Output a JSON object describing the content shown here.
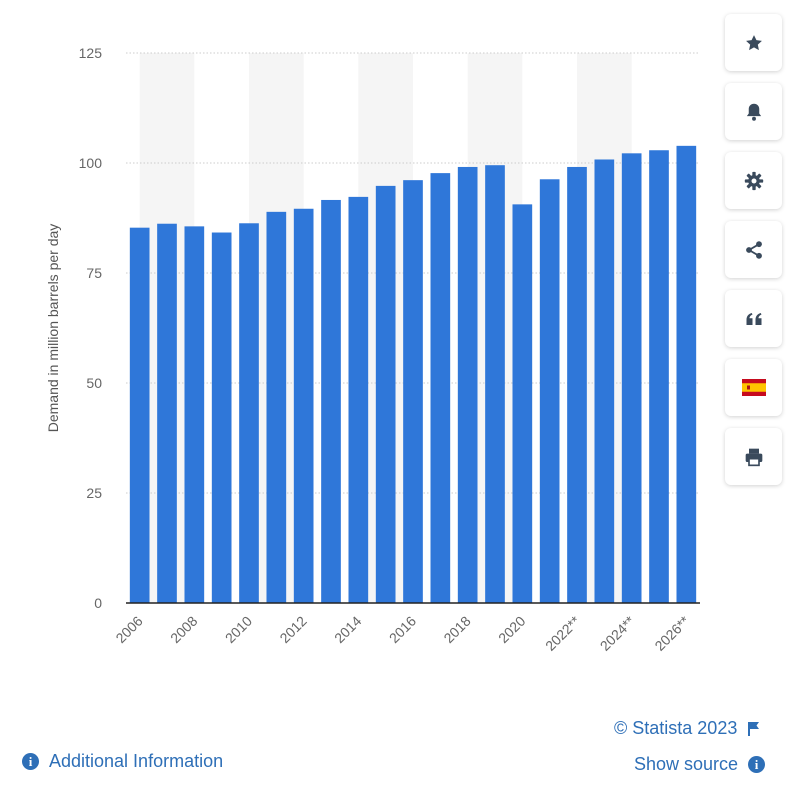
{
  "chart_data": {
    "type": "bar",
    "categories": [
      "2006",
      "2007",
      "2008",
      "2009",
      "2010",
      "2011",
      "2012",
      "2013",
      "2014",
      "2015",
      "2016",
      "2017",
      "2018",
      "2019",
      "2020",
      "2021",
      "2022**",
      "2023**",
      "2024**",
      "2025**",
      "2026**"
    ],
    "tick_labels": [
      "2006",
      "2008",
      "2010",
      "2012",
      "2014",
      "2016",
      "2018",
      "2020",
      "2022**",
      "2024**",
      "2026**"
    ],
    "values": [
      85.3,
      86.2,
      85.6,
      84.2,
      86.3,
      88.9,
      89.6,
      91.6,
      92.3,
      94.8,
      96.1,
      97.7,
      99.1,
      99.5,
      90.6,
      96.3,
      99.1,
      100.8,
      102.2,
      102.9,
      103.9
    ],
    "yticks": [
      0,
      25,
      50,
      75,
      100,
      125
    ],
    "ylim": [
      0,
      125
    ],
    "ylabel": "Demand in million barrels per day",
    "xlabel": "",
    "title": "",
    "bar_color": "#2f77d9",
    "grid": true
  },
  "toolbar": {
    "icons": [
      "star-icon",
      "bell-icon",
      "gear-icon",
      "share-icon",
      "quote-icon",
      "flag-spain-icon",
      "print-icon"
    ]
  },
  "footer": {
    "copyright": "© Statista 2023",
    "additional_info": "Additional Information",
    "show_source": "Show source"
  },
  "colors": {
    "accent": "#2e6fb7",
    "bar": "#2f77d9",
    "band": "#f5f5f5"
  }
}
